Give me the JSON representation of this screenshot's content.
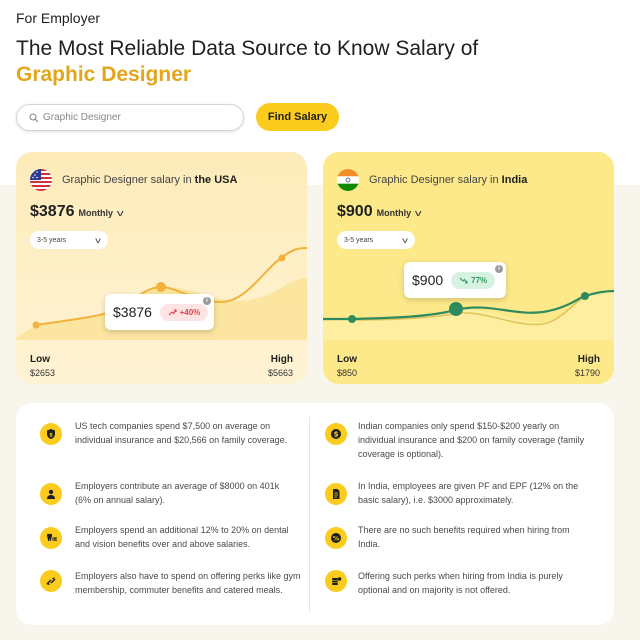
{
  "header": {
    "eyebrow": "For Employer",
    "headline": "The Most Reliable Data Source to Know Salary of",
    "headline_accent": "Graphic Designer"
  },
  "search": {
    "placeholder": "Graphic Designer",
    "button_label": "Find Salary"
  },
  "cards": {
    "usa": {
      "title_prefix": "Graphic Designer salary in ",
      "country": "the USA",
      "amount": "$3876",
      "period": "Monthly",
      "experience": "3-5 years",
      "tooltip_amount": "$3876",
      "tooltip_change": "+40%",
      "low_label": "Low",
      "low_value": "$2653",
      "high_label": "High",
      "high_value": "$5663",
      "accent_color": "#f2b33c",
      "badge_color": "#e0434a"
    },
    "india": {
      "title_prefix": "Graphic Designer salary in ",
      "country": "India",
      "amount": "$900",
      "period": "Monthly",
      "experience": "3-5 years",
      "tooltip_amount": "$900",
      "tooltip_change": "77%",
      "low_label": "Low",
      "low_value": "$850",
      "high_label": "High",
      "high_value": "$1790",
      "accent_color": "#2e8b5e",
      "badge_color": "#2e9b5e"
    }
  },
  "benefits": {
    "usa": [
      {
        "icon": "shield-dollar-icon",
        "text": "US tech companies spend $7,500 on average on individual insurance and $20,566 on family coverage."
      },
      {
        "icon": "person-icon",
        "text": "Employers contribute an average of $8000 on 401k (6% on annual salary)."
      },
      {
        "icon": "tooth-glasses-icon",
        "text": "Employers spend an additional 12% to 20% on dental and vision benefits over and above salaries."
      },
      {
        "icon": "perks-arrows-icon",
        "text": "Employers also have to spend on offering perks like gym membership, commuter benefits and catered meals."
      }
    ],
    "india": [
      {
        "icon": "dollar-coin-icon",
        "text": "Indian companies only spend $150-$200 yearly on individual insurance and $200 on family coverage (family coverage is optional)."
      },
      {
        "icon": "document-icon",
        "text": "In India, employees are given PF and EPF (12% on the basic salary), i.e. $3000 approximately."
      },
      {
        "icon": "percent-icon",
        "text": "There are no such benefits required when hiring from India."
      },
      {
        "icon": "coins-stack-icon",
        "text": "Offering such perks when hiring from India is purely optional and on majority is not offered."
      }
    ]
  },
  "colors": {
    "brand_yellow": "#fbcc1e",
    "accent_gold": "#e3a51b"
  }
}
